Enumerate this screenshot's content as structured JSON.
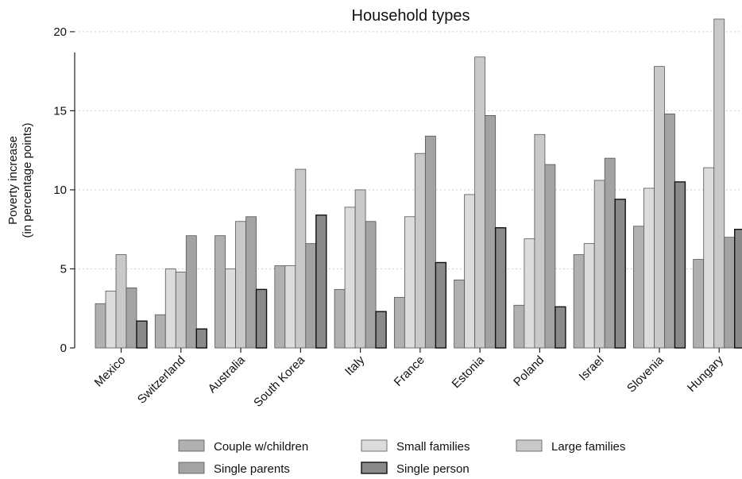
{
  "chart_data": {
    "type": "bar",
    "title": "Household types",
    "ylabel_lines": [
      "Poverty increase",
      "(in percentage points)"
    ],
    "xlabel": "",
    "ylim": [
      0,
      21
    ],
    "yticks": [
      0,
      5,
      10,
      15,
      20
    ],
    "grid": true,
    "legend_position": "bottom",
    "categories": [
      "Mexico",
      "Switzerland",
      "Australia",
      "South Korea",
      "Italy",
      "France",
      "Estonia",
      "Poland",
      "Israel",
      "Slovenia",
      "Hungary"
    ],
    "series": [
      {
        "name": "Couple w/children",
        "color": "#b0b0b0",
        "values": [
          2.8,
          2.1,
          7.1,
          5.2,
          3.7,
          3.2,
          4.3,
          2.7,
          5.9,
          7.7,
          5.6
        ]
      },
      {
        "name": "Small families",
        "color": "#dcdcdc",
        "values": [
          3.6,
          5.0,
          5.0,
          5.2,
          8.9,
          8.3,
          9.7,
          6.9,
          6.6,
          10.1,
          11.4
        ]
      },
      {
        "name": "Large families",
        "color": "#c9c9c9",
        "values": [
          5.9,
          4.8,
          8.0,
          11.3,
          10.0,
          12.3,
          18.4,
          13.5,
          10.6,
          17.8,
          20.8
        ]
      },
      {
        "name": "Single parents",
        "color": "#a3a3a3",
        "values": [
          3.8,
          7.1,
          8.3,
          6.6,
          8.0,
          13.4,
          14.7,
          11.6,
          12.0,
          14.8,
          7.0
        ]
      },
      {
        "name": "Single person",
        "color": "#8a8a8a",
        "values": [
          1.7,
          1.2,
          3.7,
          8.4,
          2.3,
          5.4,
          7.6,
          2.6,
          9.4,
          10.5,
          7.5
        ]
      }
    ]
  }
}
